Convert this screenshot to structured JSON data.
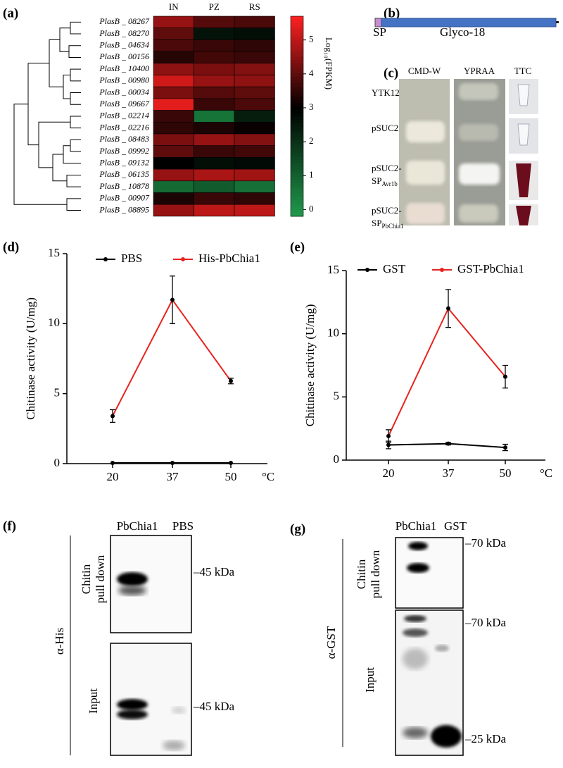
{
  "panel_labels": [
    "(a)",
    "(b)",
    "(c)",
    "(d)",
    "(e)",
    "(f)",
    "(g)"
  ],
  "chart_data": [
    {
      "type": "heatmap",
      "columns": [
        "IN",
        "PZ",
        "RS"
      ],
      "rows": [
        "PlasB _ 08267",
        "PlasB _ 08270",
        "PlasB _ 04634",
        "PlasB _ 00156",
        "PlasB _ 10400",
        "PlasB _ 00980",
        "PlasB _ 00034",
        "PlasB _ 09667",
        "PlasB _ 02214",
        "PlasB _ 02216",
        "PlasB _ 08483",
        "PlasB _ 09992",
        "PlasB _ 09132",
        "PlasB _ 06135",
        "PlasB _ 10878",
        "PlasB _ 00907",
        "PlasB _ 08895"
      ],
      "values": [
        [
          4.6,
          3.9,
          3.8
        ],
        [
          4.0,
          2.6,
          2.7
        ],
        [
          3.8,
          3.6,
          3.5
        ],
        [
          3.4,
          3.7,
          3.6
        ],
        [
          4.5,
          4.3,
          4.4
        ],
        [
          5.2,
          4.6,
          4.5
        ],
        [
          4.3,
          3.9,
          4.0
        ],
        [
          5.4,
          3.6,
          3.8
        ],
        [
          3.6,
          0.6,
          2.4
        ],
        [
          3.5,
          3.3,
          3.1
        ],
        [
          4.3,
          4.6,
          4.4
        ],
        [
          4.0,
          3.6,
          3.7
        ],
        [
          3.0,
          2.7,
          2.8
        ],
        [
          4.6,
          4.8,
          4.7
        ],
        [
          0.8,
          1.1,
          0.7
        ],
        [
          3.3,
          3.6,
          3.5
        ],
        [
          4.6,
          5.0,
          5.0
        ]
      ],
      "colorbar_label": "Log₁₀(FPKM)",
      "clim": [
        -0.2,
        5.7
      ],
      "cmid": 3,
      "cticks": [
        0,
        1,
        2,
        3,
        4,
        5
      ],
      "colors": [
        "#1f9a4c",
        "#000000",
        "#ff2020"
      ]
    },
    {
      "type": "line",
      "categories": [
        "20",
        "37",
        "50"
      ],
      "xlabel": "°C",
      "ylabel": "Chitinase  activity (U/mg)",
      "ylim": [
        0,
        15
      ],
      "yticks": [
        0,
        5,
        10,
        15
      ],
      "series": [
        {
          "name": "PBS",
          "color": "#000000",
          "values": [
            0.05,
            0.05,
            0.05
          ]
        },
        {
          "name": "His-PbChia1",
          "color": "#e8231f",
          "values": [
            3.4,
            11.7,
            5.9
          ],
          "errors": [
            0.45,
            1.7,
            0.2
          ]
        }
      ]
    },
    {
      "type": "line",
      "categories": [
        "20",
        "37",
        "50"
      ],
      "xlabel": "°C",
      "ylabel": "Chitinase  activity (U/mg)",
      "ylim": [
        0,
        15
      ],
      "yticks": [
        0,
        5,
        10,
        15
      ],
      "series": [
        {
          "name": "GST",
          "color": "#000000",
          "values": [
            1.2,
            1.3,
            1.0
          ],
          "errors": [
            0.3,
            0.1,
            0.25
          ]
        },
        {
          "name": "GST-PbChia1",
          "color": "#e8231f",
          "values": [
            1.9,
            12.0,
            6.6
          ],
          "errors": [
            0.5,
            1.5,
            0.9
          ]
        }
      ]
    }
  ],
  "domain": {
    "signal": "SP",
    "domain": "Glyco-18"
  },
  "secretion": {
    "columns": [
      "CMD-W",
      "YPRAA",
      "TTC"
    ],
    "rows": [
      {
        "lines": [
          "YTK12"
        ]
      },
      {
        "lines": [
          "pSUC2"
        ]
      },
      {
        "lines": [
          "pSUC2-",
          "SP"
        ],
        "sub": "Avr1b"
      },
      {
        "lines": [
          "pSUC2-",
          "SP"
        ],
        "sub": "PbChia1"
      }
    ]
  },
  "blot_f": {
    "lanes": [
      "PbChia1",
      "PBS"
    ],
    "antibody": "α-His",
    "sections": [
      [
        "Chitin",
        "pull down"
      ],
      [
        "Input"
      ]
    ],
    "markers": [
      "–45 kDa",
      "–45 kDa"
    ]
  },
  "blot_g": {
    "lanes": [
      "PbChia1",
      "GST"
    ],
    "antibody": "α-GST",
    "sections": [
      [
        "Chitin",
        "pull down"
      ],
      [
        "Input"
      ]
    ],
    "markers": [
      "–70 kDa",
      "–70 kDa",
      "–25 kDa"
    ]
  }
}
